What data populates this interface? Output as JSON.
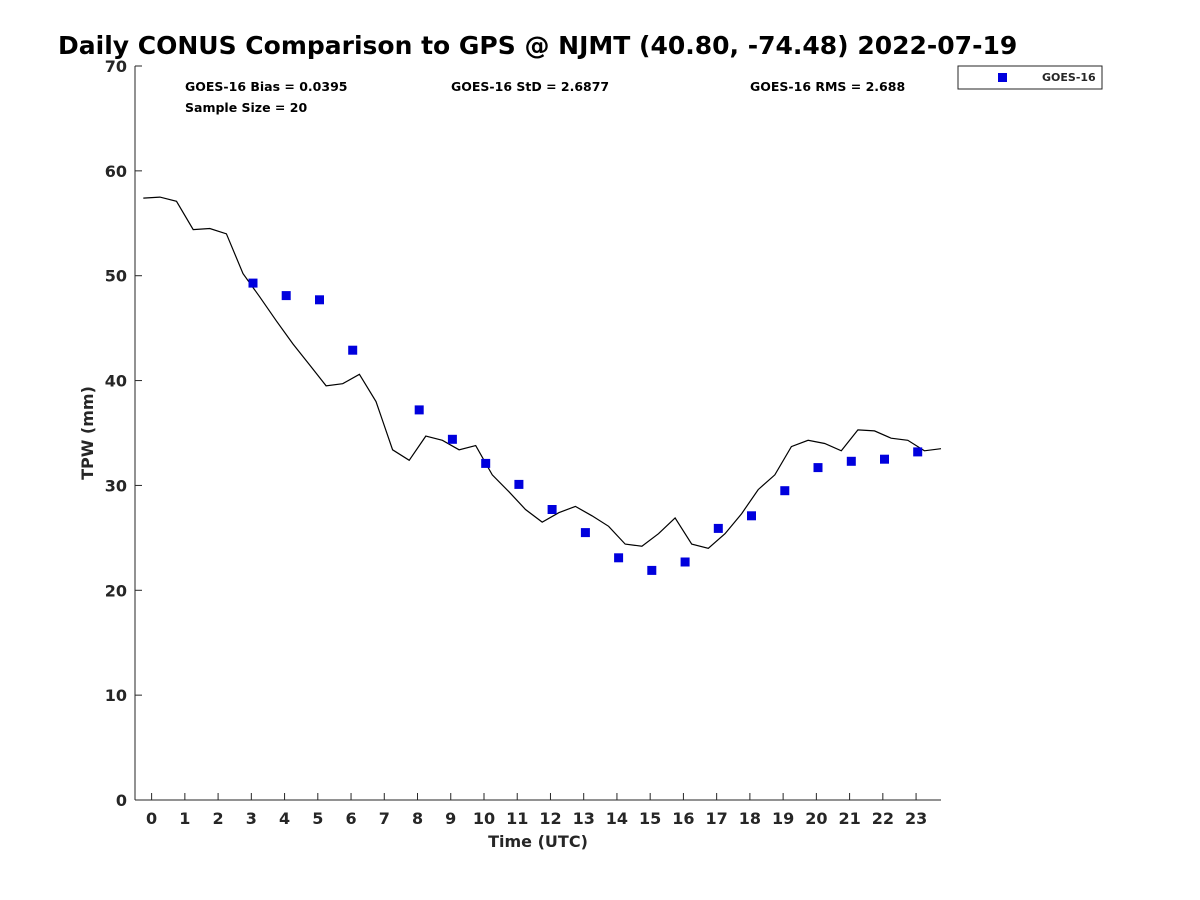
{
  "chart_data": {
    "type": "scatter",
    "title": "Daily CONUS Comparison to GPS @ NJMT (40.80, -74.48) 2022-07-19",
    "xlabel": "Time (UTC)",
    "ylabel": "TPW (mm)",
    "xlim": [
      -0.5,
      23.75
    ],
    "ylim": [
      0,
      70
    ],
    "x_ticks": [
      0,
      1,
      2,
      3,
      4,
      5,
      6,
      7,
      8,
      9,
      10,
      11,
      12,
      13,
      14,
      15,
      16,
      17,
      18,
      19,
      20,
      21,
      22,
      23
    ],
    "y_ticks": [
      0,
      10,
      20,
      30,
      40,
      50,
      60,
      70
    ],
    "grid": false,
    "legend_position": "top-right, outside plot",
    "stats": {
      "bias": "GOES-16 Bias = 0.0395",
      "std": "GOES-16 StD = 2.6877",
      "rms": "GOES-16 RMS = 2.688",
      "sample": "Sample Size = 20"
    },
    "series": [
      {
        "name": "GOES-16",
        "kind": "scatter",
        "marker": "square",
        "color": "#0000dd",
        "x": [
          3.05,
          4.05,
          5.05,
          6.05,
          8.05,
          9.05,
          10.05,
          11.05,
          12.05,
          13.05,
          14.05,
          15.05,
          16.05,
          17.05,
          18.05,
          19.05,
          20.05,
          21.05,
          22.05,
          23.05
        ],
        "y": [
          49.3,
          48.1,
          47.7,
          42.9,
          37.2,
          34.4,
          32.1,
          30.1,
          27.7,
          25.5,
          23.1,
          21.9,
          22.7,
          25.9,
          27.1,
          29.5,
          31.7,
          32.3,
          32.5,
          33.2
        ]
      },
      {
        "kind": "line",
        "color": "#000000",
        "x": [
          -0.25,
          0.25,
          0.75,
          1.25,
          1.75,
          2.25,
          2.75,
          3.25,
          3.75,
          4.25,
          4.75,
          5.25,
          5.75,
          6.25,
          6.75,
          7.25,
          7.75,
          8.25,
          8.75,
          9.25,
          9.75,
          10.25,
          10.75,
          11.25,
          11.75,
          12.25,
          12.75,
          13.25,
          13.75,
          14.25,
          14.75,
          15.25,
          15.75,
          16.25,
          16.75,
          17.25,
          17.75,
          18.25,
          18.75,
          19.25,
          19.75,
          20.25,
          20.75,
          21.25,
          21.75,
          22.25,
          22.75,
          23.25,
          23.75
        ],
        "y": [
          57.4,
          57.5,
          57.1,
          54.4,
          54.5,
          54.0,
          50.2,
          48.0,
          45.7,
          43.5,
          41.5,
          39.5,
          39.7,
          40.6,
          38.0,
          33.4,
          32.4,
          34.7,
          34.3,
          33.4,
          33.8,
          31.0,
          29.4,
          27.7,
          26.5,
          27.4,
          28.0,
          27.1,
          26.1,
          24.4,
          24.2,
          25.4,
          26.9,
          24.4,
          24.0,
          25.4,
          27.3,
          29.6,
          31.0,
          33.7,
          34.3,
          34.0,
          33.3,
          35.3,
          35.2,
          34.5,
          34.3,
          33.3,
          33.5
        ]
      }
    ]
  }
}
